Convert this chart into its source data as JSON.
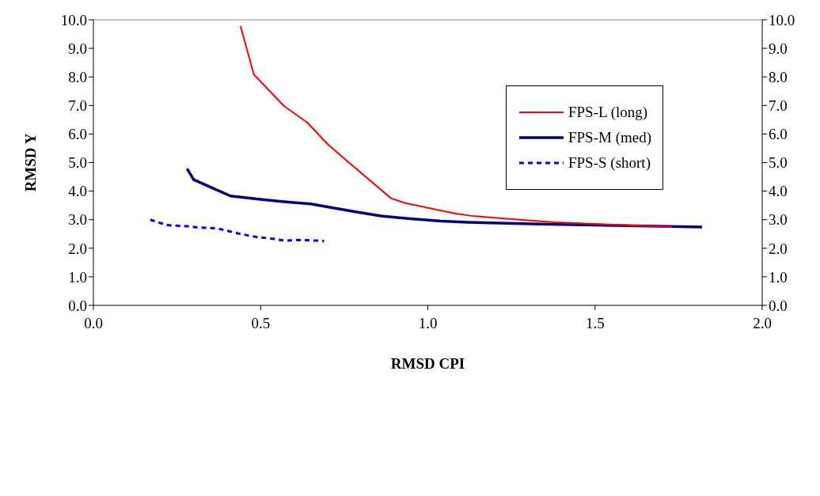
{
  "chart_data": {
    "type": "line",
    "xlabel": "RMSD CPI",
    "ylabel": "RMSD Y",
    "xlim": [
      0,
      2
    ],
    "xticks": [
      {
        "value": 0,
        "label": "0.0"
      },
      {
        "value": 0.5,
        "label": "0.5"
      },
      {
        "value": 1,
        "label": "1.0"
      },
      {
        "value": 1.5,
        "label": "1.5"
      },
      {
        "value": 2,
        "label": "2.0"
      }
    ],
    "ylim": [
      0,
      10
    ],
    "yticks": [
      {
        "value": 0,
        "label": "0.0"
      },
      {
        "value": 1,
        "label": "1.0"
      },
      {
        "value": 2,
        "label": "2.0"
      },
      {
        "value": 3,
        "label": "3.0"
      },
      {
        "value": 4,
        "label": "4.0"
      },
      {
        "value": 5,
        "label": "5.0"
      },
      {
        "value": 6,
        "label": "6.0"
      },
      {
        "value": 7,
        "label": "7.0"
      },
      {
        "value": 8,
        "label": "8.0"
      },
      {
        "value": 9,
        "label": "9.0"
      },
      {
        "value": 10,
        "label": "10.0"
      }
    ],
    "y2lim": [
      0,
      10
    ],
    "y2ticks": [
      {
        "value": 0,
        "label": "0.0"
      },
      {
        "value": 1,
        "label": "1.0"
      },
      {
        "value": 2,
        "label": "2.0"
      },
      {
        "value": 3,
        "label": "3.0"
      },
      {
        "value": 4,
        "label": "4.0"
      },
      {
        "value": 5,
        "label": "5.0"
      },
      {
        "value": 6,
        "label": "6.0"
      },
      {
        "value": 7,
        "label": "7.0"
      },
      {
        "value": 8,
        "label": "8.0"
      },
      {
        "value": 9,
        "label": "9.0"
      },
      {
        "value": 10,
        "label": "10.0"
      }
    ],
    "grid": false,
    "legend": "top right",
    "marker": "none",
    "series": [
      {
        "name": "FPS-S (short)",
        "color": "#0000ff",
        "line_style": "dashed",
        "x": [
          0.17,
          0.22,
          0.28,
          0.31,
          0.37,
          0.42,
          0.47,
          0.49,
          0.54,
          0.57,
          0.63,
          0.69
        ],
        "values": [
          3.0,
          2.81,
          2.77,
          2.73,
          2.7,
          2.55,
          2.43,
          2.39,
          2.33,
          2.27,
          2.29,
          2.25
        ]
      },
      {
        "name": "FPS-M (med)",
        "color": "#000080",
        "line_style": "solid",
        "x": [
          0.28,
          0.3,
          0.41,
          0.51,
          0.57,
          0.65,
          0.78,
          0.86,
          0.94,
          1.04,
          1.12,
          1.19,
          1.31,
          1.46,
          1.82
        ],
        "values": [
          4.79,
          4.4,
          3.83,
          3.7,
          3.63,
          3.55,
          3.28,
          3.13,
          3.04,
          2.95,
          2.91,
          2.89,
          2.85,
          2.82,
          2.74
        ]
      },
      {
        "name": "FPS-L (long)",
        "color": "#ff0000",
        "line_style": "solid",
        "x": [
          0.44,
          0.48,
          0.57,
          0.64,
          0.7,
          0.76,
          0.89,
          0.93,
          1.08,
          1.14,
          1.26,
          1.38,
          1.73
        ],
        "values": [
          9.78,
          8.08,
          6.98,
          6.4,
          5.65,
          5.04,
          3.75,
          3.59,
          3.22,
          3.12,
          3.01,
          2.91,
          2.74
        ]
      }
    ]
  }
}
